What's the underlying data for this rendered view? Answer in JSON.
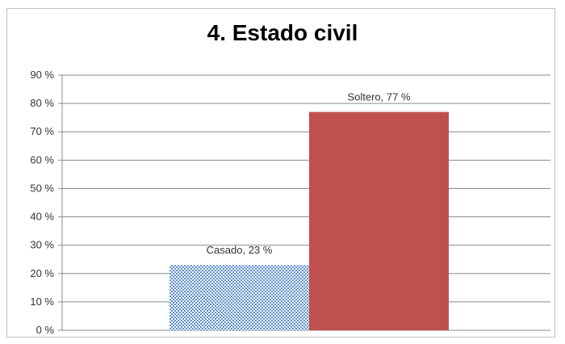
{
  "chart_data": {
    "type": "bar",
    "title": "4.  Estado civil",
    "categories": [
      "Casado",
      "Soltero"
    ],
    "values": [
      23,
      77
    ],
    "data_labels": [
      "Casado, 23 %",
      "Soltero, 77 %"
    ],
    "ylim": [
      0,
      90
    ],
    "yticks": [
      0,
      10,
      20,
      30,
      40,
      50,
      60,
      70,
      80,
      90
    ],
    "ytick_labels": [
      "0 %",
      "10 %",
      "20 %",
      "30 %",
      "40 %",
      "50 %",
      "60 %",
      "70 %",
      "80 %",
      "90 %"
    ],
    "grid": true,
    "legend": "none",
    "colors": [
      "#9dc3e6",
      "#c0504d"
    ],
    "pattern_first_bar": "checkered-blue-white"
  }
}
